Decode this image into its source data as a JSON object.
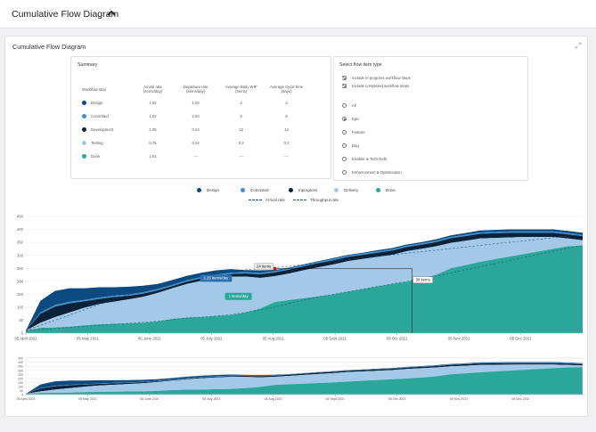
{
  "header": {
    "title": "Cumulative Flow Diagram"
  },
  "card": {
    "title": "Cumulative Flow Diagram"
  },
  "summary": {
    "title": "Summary",
    "columns": [
      "Workflow step",
      "Arrival rate (items/day)",
      "Departure rate (items/day)",
      "Average Daily WIP (items)",
      "Average Cycle time (days)"
    ],
    "rows": [
      {
        "step": "Design",
        "arrival": "1.02",
        "departure": "1.04",
        "wip": "2",
        "cycle": "2",
        "color": "#0e4a82"
      },
      {
        "step": "Commited",
        "arrival": "1.02",
        "departure": "2.04",
        "wip": "5",
        "cycle": "5",
        "color": "#3d8fce"
      },
      {
        "step": "Development",
        "arrival": "1.05",
        "departure": "0.24",
        "wip": "12",
        "cycle": "12",
        "color": "#0b2238"
      },
      {
        "step": "Testing",
        "arrival": "0.75",
        "departure": "0.24",
        "wip": "0.2",
        "cycle": "0.2",
        "color": "#a4c9e8"
      },
      {
        "step": "Done",
        "arrival": "1.01",
        "departure": "---",
        "wip": "---",
        "cycle": "---",
        "color": "#2aa69b"
      }
    ]
  },
  "select": {
    "title": "Select flow item type",
    "checks": [
      "Include in-progress workflow steps",
      "Include completed workflow steps"
    ],
    "options": [
      "All",
      "Epic",
      "Feature",
      "Bug",
      "Enabler & Tech Debt",
      "Enhancement & Optimisation"
    ],
    "selected": "Epic"
  },
  "legend": {
    "series": [
      {
        "name": "Design",
        "color": "#0e4a82"
      },
      {
        "name": "Commited",
        "color": "#3d8fce"
      },
      {
        "name": "Inprogress",
        "color": "#0b2238"
      },
      {
        "name": "Delivery",
        "color": "#a4c9e8"
      },
      {
        "name": "Done",
        "color": "#2aa69b"
      }
    ],
    "lines": [
      {
        "name": "Arrival rate",
        "color": "#0e4a82"
      },
      {
        "name": "Throughput rate",
        "color": "#1a5a5c"
      }
    ]
  },
  "annotations": {
    "arrival": "2.25 items/day",
    "throughput": "1 items/day",
    "marker": "24 items",
    "vertical": "30 items"
  },
  "chart_data": {
    "type": "area",
    "stacked": true,
    "ylim": [
      0,
      450
    ],
    "yticks": [
      0,
      50,
      100,
      150,
      200,
      250,
      300,
      350,
      400,
      450
    ],
    "overview_yticks": [
      0,
      50,
      100,
      150,
      200,
      250,
      300,
      350,
      400,
      450
    ],
    "xlabels": [
      "05 April 2021",
      "05 May 2021",
      "05 June 2021",
      "05 July 2021",
      "05 Aug 2021",
      "05 Sept 2021",
      "05 Oct 2021",
      "05 Nov 2021",
      "05 Dec 2021"
    ],
    "x": [
      0,
      7,
      14,
      21,
      28,
      35,
      42,
      49,
      56,
      63,
      70,
      77,
      84,
      91,
      98,
      105,
      112,
      119,
      126,
      133,
      140,
      147,
      154,
      161,
      168,
      175,
      182,
      189,
      196,
      203,
      210,
      217,
      224,
      231,
      238,
      245,
      252,
      259,
      266
    ],
    "series": [
      {
        "name": "Done",
        "values": [
          10,
          20,
          22,
          25,
          30,
          34,
          36,
          38,
          40,
          45,
          55,
          60,
          62,
          66,
          70,
          80,
          95,
          120,
          128,
          135,
          142,
          150,
          160,
          170,
          180,
          190,
          198,
          210,
          225,
          250,
          262,
          275,
          285,
          295,
          305,
          315,
          325,
          335,
          338
        ]
      },
      {
        "name": "Delivery",
        "values": [
          0,
          20,
          40,
          55,
          68,
          78,
          85,
          92,
          100,
          110,
          118,
          130,
          140,
          145,
          148,
          138,
          118,
          100,
          102,
          108,
          112,
          115,
          118,
          116,
          114,
          112,
          118,
          115,
          110,
          98,
          94,
          90,
          82,
          74,
          66,
          56,
          46,
          30,
          20
        ]
      },
      {
        "name": "Inprogress",
        "values": [
          0,
          35,
          40,
          35,
          25,
          20,
          18,
          14,
          12,
          10,
          8,
          9,
          10,
          10,
          10,
          12,
          14,
          14,
          15,
          15,
          16,
          16,
          16,
          16,
          16,
          16,
          16,
          16,
          16,
          18,
          18,
          18,
          18,
          18,
          16,
          16,
          16,
          16,
          16
        ]
      },
      {
        "name": "Commited",
        "values": [
          0,
          5,
          6,
          6,
          5,
          5,
          5,
          5,
          5,
          5,
          5,
          5,
          5,
          5,
          5,
          5,
          5,
          5,
          5,
          5,
          5,
          5,
          5,
          5,
          5,
          5,
          5,
          5,
          5,
          5,
          5,
          5,
          5,
          5,
          5,
          5,
          5,
          5,
          5
        ]
      },
      {
        "name": "Design",
        "values": [
          0,
          45,
          55,
          52,
          45,
          40,
          33,
          30,
          26,
          20,
          19,
          17,
          16,
          16,
          14,
          8,
          10,
          5,
          3,
          3,
          3,
          4,
          3,
          3,
          5,
          5,
          5,
          5,
          6,
          6,
          7,
          8,
          8,
          8,
          8,
          8,
          8,
          8,
          8
        ]
      }
    ],
    "lines": [
      {
        "name": "Arrival rate",
        "values": [
          10,
          30,
          50,
          70,
          90,
          110,
          130,
          148,
          165,
          180,
          195,
          208,
          220,
          232,
          240,
          244,
          248,
          252,
          258,
          264,
          270,
          276,
          282,
          290,
          296,
          302,
          308,
          314,
          320,
          326,
          332,
          338,
          345,
          350,
          356,
          362,
          368,
          374,
          380
        ]
      },
      {
        "name": "Throughput rate",
        "values": [
          10,
          14,
          18,
          22,
          26,
          30,
          34,
          38,
          42,
          46,
          52,
          58,
          62,
          66,
          72,
          80,
          90,
          100,
          115,
          128,
          140,
          150,
          160,
          170,
          180,
          190,
          200,
          210,
          220,
          232,
          244,
          256,
          268,
          280,
          292,
          304,
          316,
          328,
          338
        ]
      }
    ],
    "annotations": [
      {
        "label": "2.25 items/day",
        "x": 84,
        "y": 205
      },
      {
        "label": "1 items/day",
        "x": 96,
        "y": 135
      },
      {
        "label": "24 items",
        "x": 119,
        "y": 249
      },
      {
        "label": "30 items",
        "x": 182,
        "y": 200
      }
    ]
  }
}
